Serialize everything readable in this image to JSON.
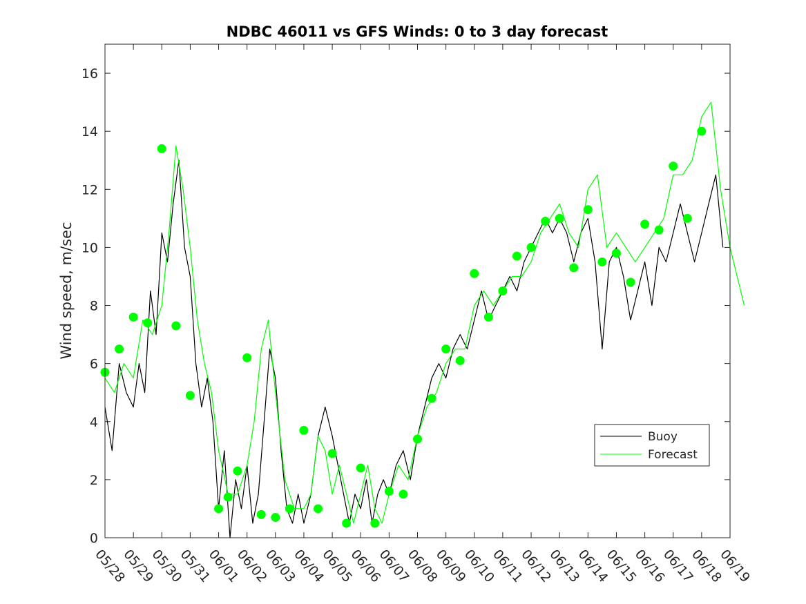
{
  "chart_data": {
    "type": "line",
    "title": "NDBC 46011 vs GFS Winds: 0 to 3 day forecast",
    "xlabel": "",
    "ylabel": "Wind speed, m/sec",
    "x_ticks": [
      "05/28",
      "05/29",
      "05/30",
      "05/31",
      "06/01",
      "06/02",
      "06/03",
      "06/04",
      "06/05",
      "06/06",
      "06/07",
      "06/08",
      "06/09",
      "06/10",
      "06/11",
      "06/12",
      "06/13",
      "06/14",
      "06/15",
      "06/16",
      "06/17",
      "06/18",
      "06/19"
    ],
    "xlim": [
      "05/28",
      "06/19"
    ],
    "ylim": [
      0,
      17
    ],
    "y_ticks": [
      0,
      2,
      4,
      6,
      8,
      10,
      12,
      14,
      16
    ],
    "grid": false,
    "legend_position": "lower-right",
    "series": [
      {
        "name": "Buoy",
        "color": "#000000",
        "style": "line",
        "points": [
          [
            "05/28",
            4.5
          ],
          [
            "05/28",
            3.0
          ],
          [
            "05/28",
            6.0
          ],
          [
            "05/28",
            5.0
          ],
          [
            "05/29",
            4.5
          ],
          [
            "05/29",
            6.0
          ],
          [
            "05/29",
            5.0
          ],
          [
            "05/29",
            8.5
          ],
          [
            "05/29",
            7.0
          ],
          [
            "05/30",
            10.5
          ],
          [
            "05/30",
            9.5
          ],
          [
            "05/30",
            11.5
          ],
          [
            "05/30",
            13.0
          ],
          [
            "05/30",
            10.0
          ],
          [
            "05/31",
            9.0
          ],
          [
            "05/31",
            6.0
          ],
          [
            "05/31",
            4.5
          ],
          [
            "05/31",
            5.5
          ],
          [
            "05/31",
            4.0
          ],
          [
            "06/01",
            1.0
          ],
          [
            "06/01",
            3.0
          ],
          [
            "06/01",
            0.0
          ],
          [
            "06/01",
            2.0
          ],
          [
            "06/01",
            1.0
          ],
          [
            "06/02",
            2.5
          ],
          [
            "06/02",
            0.5
          ],
          [
            "06/02",
            1.5
          ],
          [
            "06/02",
            4.0
          ],
          [
            "06/02",
            6.5
          ],
          [
            "06/03",
            5.5
          ],
          [
            "06/03",
            3.0
          ],
          [
            "06/03",
            1.0
          ],
          [
            "06/03",
            0.5
          ],
          [
            "06/03",
            1.5
          ],
          [
            "06/04",
            0.5
          ],
          [
            "06/04",
            1.5
          ],
          [
            "06/04",
            3.5
          ],
          [
            "06/04",
            4.5
          ],
          [
            "06/05",
            3.5
          ],
          [
            "06/05",
            2.5
          ],
          [
            "06/05",
            1.5
          ],
          [
            "06/05",
            0.5
          ],
          [
            "06/05",
            1.5
          ],
          [
            "06/06",
            1.0
          ],
          [
            "06/06",
            2.0
          ],
          [
            "06/06",
            0.5
          ],
          [
            "06/06",
            1.5
          ],
          [
            "06/06",
            2.0
          ],
          [
            "06/07",
            1.5
          ],
          [
            "06/07",
            2.5
          ],
          [
            "06/07",
            3.0
          ],
          [
            "06/07",
            2.0
          ],
          [
            "06/08",
            3.5
          ],
          [
            "06/08",
            4.5
          ],
          [
            "06/08",
            5.5
          ],
          [
            "06/08",
            6.0
          ],
          [
            "06/09",
            5.5
          ],
          [
            "06/09",
            6.5
          ],
          [
            "06/09",
            7.0
          ],
          [
            "06/09",
            6.5
          ],
          [
            "06/10",
            7.5
          ],
          [
            "06/10",
            8.5
          ],
          [
            "06/10",
            7.5
          ],
          [
            "06/10",
            8.0
          ],
          [
            "06/11",
            8.5
          ],
          [
            "06/11",
            9.0
          ],
          [
            "06/11",
            8.5
          ],
          [
            "06/11",
            9.5
          ],
          [
            "06/12",
            10.0
          ],
          [
            "06/12",
            10.5
          ],
          [
            "06/12",
            11.0
          ],
          [
            "06/12",
            10.5
          ],
          [
            "06/13",
            11.0
          ],
          [
            "06/13",
            10.5
          ],
          [
            "06/13",
            9.5
          ],
          [
            "06/13",
            10.5
          ],
          [
            "06/14",
            11.0
          ],
          [
            "06/14",
            9.5
          ],
          [
            "06/14",
            6.5
          ],
          [
            "06/14",
            9.5
          ],
          [
            "06/15",
            10.0
          ],
          [
            "06/15",
            9.0
          ],
          [
            "06/15",
            7.5
          ],
          [
            "06/15",
            8.5
          ],
          [
            "06/16",
            9.5
          ],
          [
            "06/16",
            8.0
          ],
          [
            "06/16",
            10.0
          ],
          [
            "06/16",
            9.5
          ],
          [
            "06/17",
            10.5
          ],
          [
            "06/17",
            11.5
          ],
          [
            "06/17",
            10.5
          ],
          [
            "06/17",
            9.5
          ],
          [
            "06/18",
            10.5
          ],
          [
            "06/18",
            11.5
          ],
          [
            "06/18",
            12.5
          ],
          [
            "06/18",
            10.0
          ]
        ]
      },
      {
        "name": "Forecast",
        "color": "#00ff00",
        "style": "line",
        "points": [
          [
            "05/28",
            5.5
          ],
          [
            "05/28",
            5.0
          ],
          [
            "05/28",
            6.0
          ],
          [
            "05/29",
            5.5
          ],
          [
            "05/29",
            7.5
          ],
          [
            "05/29",
            7.0
          ],
          [
            "05/30",
            8.0
          ],
          [
            "05/30",
            10.5
          ],
          [
            "05/30",
            13.5
          ],
          [
            "05/30",
            12.0
          ],
          [
            "05/31",
            10.0
          ],
          [
            "05/31",
            7.5
          ],
          [
            "05/31",
            6.0
          ],
          [
            "05/31",
            5.0
          ],
          [
            "06/01",
            3.0
          ],
          [
            "06/01",
            1.5
          ],
          [
            "06/01",
            1.5
          ],
          [
            "06/02",
            2.5
          ],
          [
            "06/02",
            4.0
          ],
          [
            "06/02",
            6.5
          ],
          [
            "06/02",
            7.5
          ],
          [
            "06/03",
            5.0
          ],
          [
            "06/03",
            2.0
          ],
          [
            "06/03",
            1.0
          ],
          [
            "06/04",
            1.0
          ],
          [
            "06/04",
            1.5
          ],
          [
            "06/04",
            3.5
          ],
          [
            "06/04",
            3.0
          ],
          [
            "06/05",
            1.5
          ],
          [
            "06/05",
            2.5
          ],
          [
            "06/05",
            1.5
          ],
          [
            "06/05",
            0.5
          ],
          [
            "06/06",
            1.5
          ],
          [
            "06/06",
            2.5
          ],
          [
            "06/06",
            1.0
          ],
          [
            "06/06",
            0.5
          ],
          [
            "06/07",
            1.5
          ],
          [
            "06/07",
            2.5
          ],
          [
            "06/07",
            2.0
          ],
          [
            "06/08",
            3.5
          ],
          [
            "06/08",
            4.5
          ],
          [
            "06/08",
            5.0
          ],
          [
            "06/09",
            6.0
          ],
          [
            "06/09",
            6.5
          ],
          [
            "06/09",
            6.5
          ],
          [
            "06/10",
            8.0
          ],
          [
            "06/10",
            8.5
          ],
          [
            "06/10",
            8.0
          ],
          [
            "06/11",
            8.5
          ],
          [
            "06/11",
            9.0
          ],
          [
            "06/11",
            9.0
          ],
          [
            "06/12",
            9.5
          ],
          [
            "06/12",
            10.5
          ],
          [
            "06/12",
            11.0
          ],
          [
            "06/13",
            11.5
          ],
          [
            "06/13",
            10.5
          ],
          [
            "06/13",
            10.0
          ],
          [
            "06/14",
            12.0
          ],
          [
            "06/14",
            12.5
          ],
          [
            "06/14",
            10.0
          ],
          [
            "06/15",
            10.5
          ],
          [
            "06/15",
            10.0
          ],
          [
            "06/15",
            9.5
          ],
          [
            "06/16",
            10.0
          ],
          [
            "06/16",
            10.5
          ],
          [
            "06/16",
            11.0
          ],
          [
            "06/17",
            12.5
          ],
          [
            "06/17",
            12.5
          ],
          [
            "06/17",
            13.0
          ],
          [
            "06/18",
            14.5
          ],
          [
            "06/18",
            15.0
          ],
          [
            "06/18",
            12.0
          ],
          [
            "06/19",
            10.0
          ],
          [
            "06/19",
            8.0
          ]
        ]
      },
      {
        "name": "",
        "color": "#00ff00",
        "style": "markers",
        "points": [
          [
            "05/28",
            5.7
          ],
          [
            "05/28",
            6.5
          ],
          [
            "05/29",
            7.6
          ],
          [
            "05/29",
            7.4
          ],
          [
            "05/30",
            13.4
          ],
          [
            "05/30",
            7.3
          ],
          [
            "05/31",
            4.9
          ],
          [
            "06/01",
            1.0
          ],
          [
            "06/01",
            1.4
          ],
          [
            "06/01",
            2.3
          ],
          [
            "06/02",
            6.2
          ],
          [
            "06/02",
            0.8
          ],
          [
            "06/03",
            0.7
          ],
          [
            "06/03",
            1.0
          ],
          [
            "06/04",
            3.7
          ],
          [
            "06/04",
            1.0
          ],
          [
            "06/05",
            2.9
          ],
          [
            "06/05",
            0.5
          ],
          [
            "06/06",
            2.4
          ],
          [
            "06/06",
            0.5
          ],
          [
            "06/07",
            1.6
          ],
          [
            "06/07",
            1.5
          ],
          [
            "06/08",
            3.4
          ],
          [
            "06/08",
            4.8
          ],
          [
            "06/09",
            6.5
          ],
          [
            "06/09",
            6.1
          ],
          [
            "06/10",
            9.1
          ],
          [
            "06/10",
            7.6
          ],
          [
            "06/11",
            8.5
          ],
          [
            "06/11",
            9.7
          ],
          [
            "06/12",
            10.0
          ],
          [
            "06/12",
            10.9
          ],
          [
            "06/13",
            11.0
          ],
          [
            "06/13",
            9.3
          ],
          [
            "06/14",
            11.3
          ],
          [
            "06/14",
            9.5
          ],
          [
            "06/15",
            9.8
          ],
          [
            "06/15",
            8.8
          ],
          [
            "06/16",
            10.8
          ],
          [
            "06/16",
            10.6
          ],
          [
            "06/17",
            12.8
          ],
          [
            "06/17",
            11.0
          ],
          [
            "06/18",
            14.0
          ]
        ]
      }
    ]
  },
  "legend": {
    "entries": [
      {
        "label": "Buoy",
        "color": "#000000"
      },
      {
        "label": "Forecast",
        "color": "#00ff00"
      }
    ]
  }
}
